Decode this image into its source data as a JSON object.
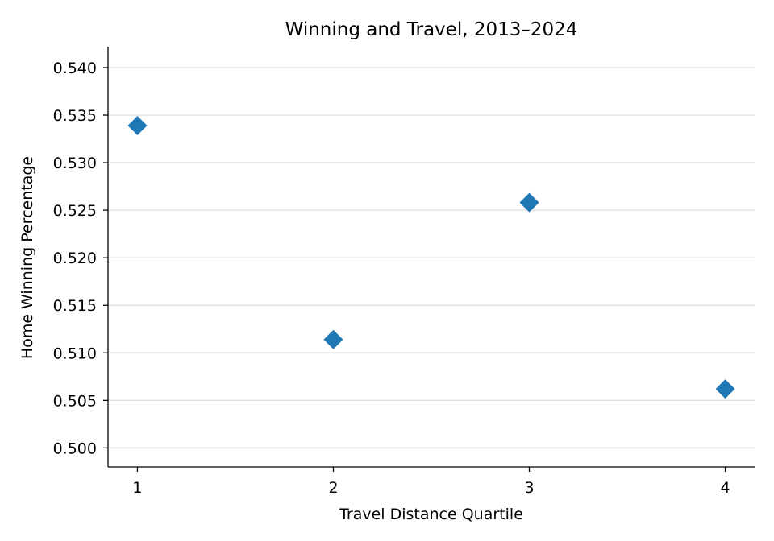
{
  "chart_data": {
    "type": "scatter",
    "title": "Winning and Travel, 2013–2024",
    "xlabel": "Travel Distance Quartile",
    "ylabel": "Home Winning Percentage",
    "x": [
      1,
      2,
      3,
      4
    ],
    "y": [
      0.5339,
      0.5114,
      0.5258,
      0.5062
    ],
    "x_ticks": [
      "1",
      "2",
      "3",
      "4"
    ],
    "y_ticks": [
      "0.500",
      "0.505",
      "0.510",
      "0.515",
      "0.520",
      "0.525",
      "0.530",
      "0.535",
      "0.540"
    ],
    "xlim": [
      0.85,
      4.15
    ],
    "ylim": [
      0.498,
      0.5422
    ],
    "marker": "diamond",
    "marker_color": "#1f77b4",
    "grid": "horizontal",
    "legend": "none"
  }
}
